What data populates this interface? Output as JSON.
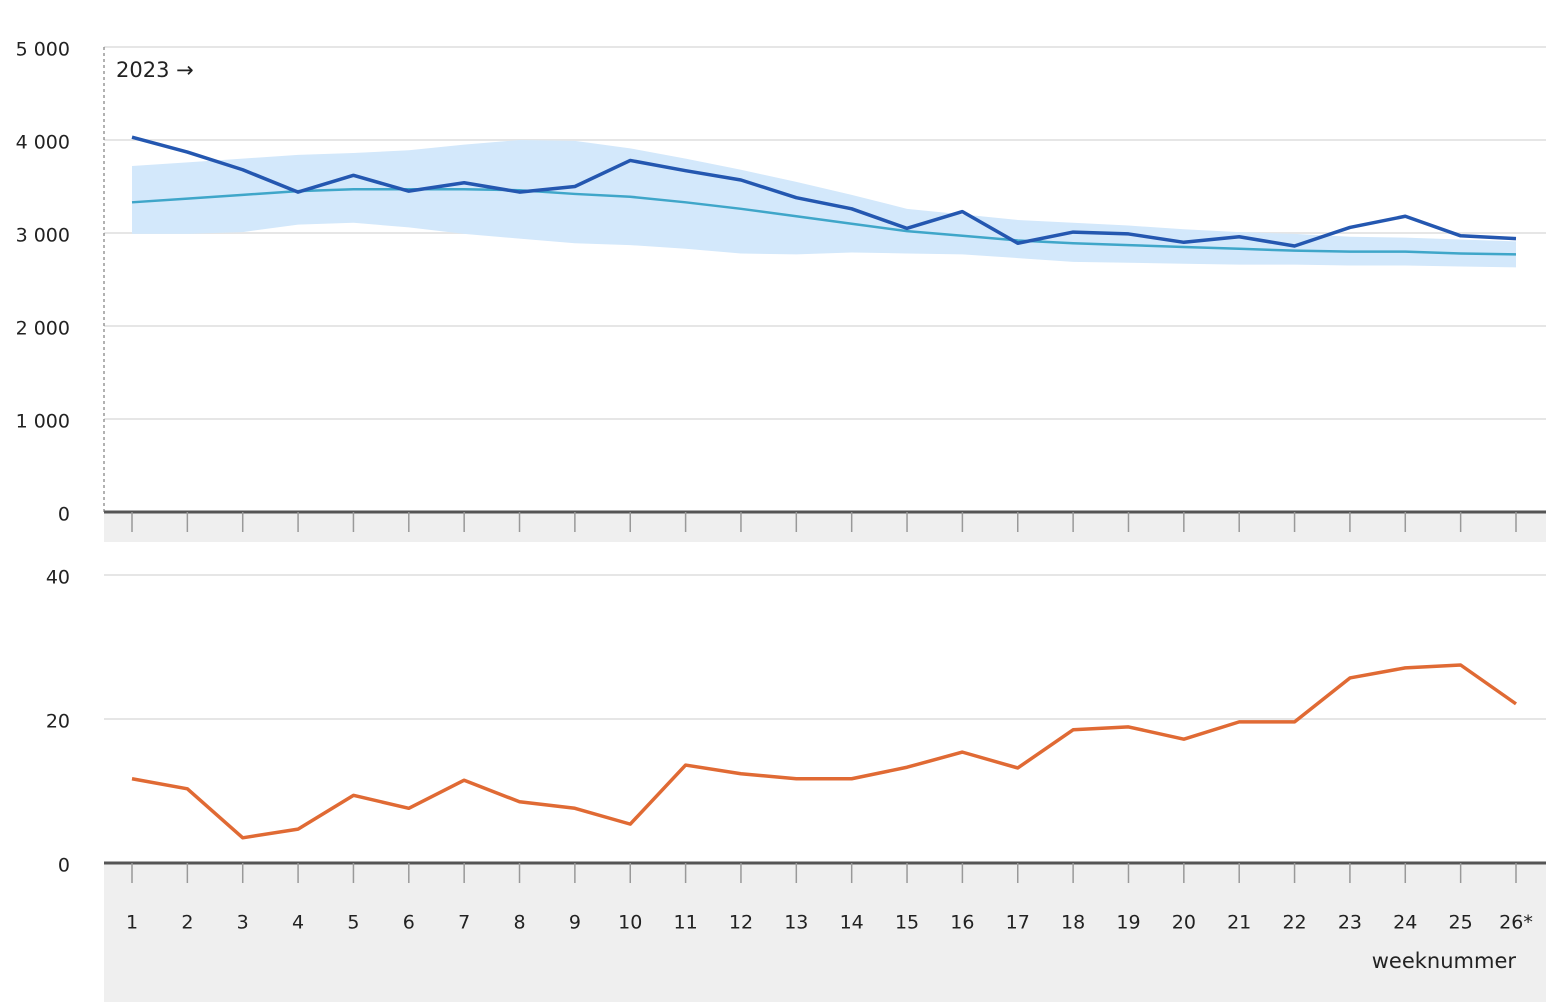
{
  "chart_data": [
    {
      "type": "line",
      "annotation": "2023 →",
      "categories": [
        null,
        null,
        null,
        null,
        null,
        null,
        null,
        null,
        null,
        null,
        null,
        null,
        null,
        null,
        null,
        null,
        null,
        null,
        null,
        null,
        null,
        null,
        null,
        null,
        null,
        null
      ],
      "band": {
        "color": "#d3e8fb",
        "lower": [
          2990,
          2990,
          3010,
          3090,
          3110,
          3060,
          2990,
          2940,
          2890,
          2870,
          2830,
          2780,
          2770,
          2790,
          2780,
          2770,
          2730,
          2690,
          2680,
          2670,
          2660,
          2660,
          2650,
          2650,
          2640,
          2630
        ],
        "upper": [
          3720,
          3760,
          3800,
          3840,
          3860,
          3890,
          3950,
          4000,
          3990,
          3910,
          3800,
          3680,
          3550,
          3410,
          3260,
          3200,
          3140,
          3110,
          3080,
          3040,
          3010,
          2990,
          2960,
          2950,
          2930,
          2910
        ]
      },
      "series": [
        {
          "color": "#3fa6c9",
          "values": [
            3330,
            3370,
            3410,
            3450,
            3470,
            3470,
            3470,
            3460,
            3420,
            3390,
            3330,
            3260,
            3180,
            3100,
            3020,
            2970,
            2920,
            2890,
            2870,
            2850,
            2830,
            2810,
            2800,
            2800,
            2780,
            2770
          ]
        },
        {
          "color": "#2457b0",
          "values": [
            4030,
            3870,
            3680,
            3440,
            3620,
            3450,
            3540,
            3440,
            3500,
            3780,
            3670,
            3570,
            3380,
            3260,
            3050,
            3230,
            2890,
            3010,
            2990,
            2900,
            2960,
            2860,
            3060,
            3180,
            2970,
            2940
          ]
        }
      ],
      "ylim": [
        0,
        5000
      ],
      "yticks": [
        0,
        {
          "value": 1000,
          "label": "1 000"
        },
        {
          "value": 2000,
          "label": "2 000"
        },
        {
          "value": 3000,
          "label": "3 000"
        },
        {
          "value": 4000,
          "label": "4 000"
        },
        {
          "value": 5000,
          "label": "5 000"
        }
      ],
      "grid": true
    },
    {
      "type": "line",
      "x_label": "weeknummer",
      "categories": [
        "1",
        "2",
        "3",
        "4",
        "5",
        "6",
        "7",
        "8",
        "9",
        "10",
        "11",
        "12",
        "13",
        "14",
        "15",
        "16",
        "17",
        "18",
        "19",
        "20",
        "21",
        "22",
        "23",
        "24",
        "25",
        "26*"
      ],
      "series": [
        {
          "color": "#e06a34",
          "values": [
            11.7,
            10.3,
            3.5,
            4.7,
            9.4,
            7.6,
            11.5,
            8.5,
            7.6,
            5.4,
            13.6,
            12.4,
            11.7,
            11.7,
            13.3,
            15.4,
            13.2,
            18.5,
            18.9,
            17.2,
            19.6,
            19.6,
            25.7,
            27.1,
            27.5,
            22.1
          ]
        }
      ],
      "ylim": [
        0,
        40
      ],
      "yticks": [
        0,
        20,
        40
      ],
      "grid": true
    }
  ]
}
